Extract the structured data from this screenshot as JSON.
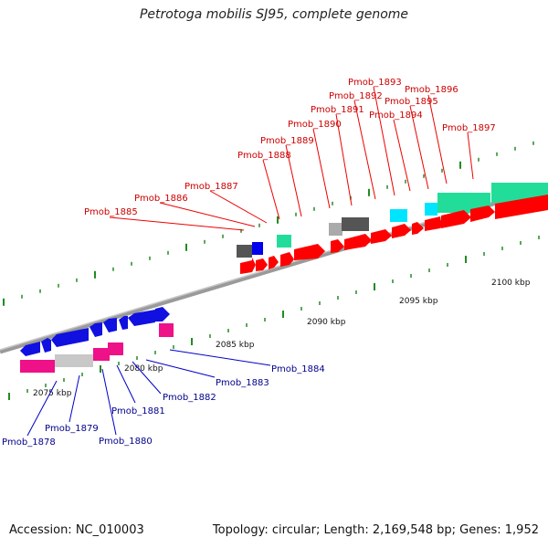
{
  "title": "Petrotoga mobilis SJ95, complete genome",
  "footer": {
    "accession": "Accession: NC_010003",
    "summary": "Topology: circular; Length: 2,169,548 bp; Genes: 1,952"
  },
  "kbp_labels": [
    "2075 kbp",
    "2080 kbp",
    "2085 kbp",
    "2090 kbp",
    "2095 kbp",
    "2100 kbp"
  ],
  "top_gene_labels": [
    "Pmob_1885",
    "Pmob_1886",
    "Pmob_1887",
    "Pmob_1888",
    "Pmob_1889",
    "Pmob_1890",
    "Pmob_1891",
    "Pmob_1892",
    "Pmob_1893",
    "Pmob_1894",
    "Pmob_1895",
    "Pmob_1896",
    "Pmob_1897"
  ],
  "bottom_gene_labels": [
    "Pmob_1878",
    "Pmob_1879",
    "Pmob_1880",
    "Pmob_1881",
    "Pmob_1882",
    "Pmob_1883",
    "Pmob_1884"
  ],
  "colors": {
    "forward_cds": "#ff0000",
    "reverse_cds": "#0000ff",
    "label_top": "#cc0000",
    "label_bottom": "#00008b",
    "backbone": "#888888",
    "tick": "#228b22"
  }
}
